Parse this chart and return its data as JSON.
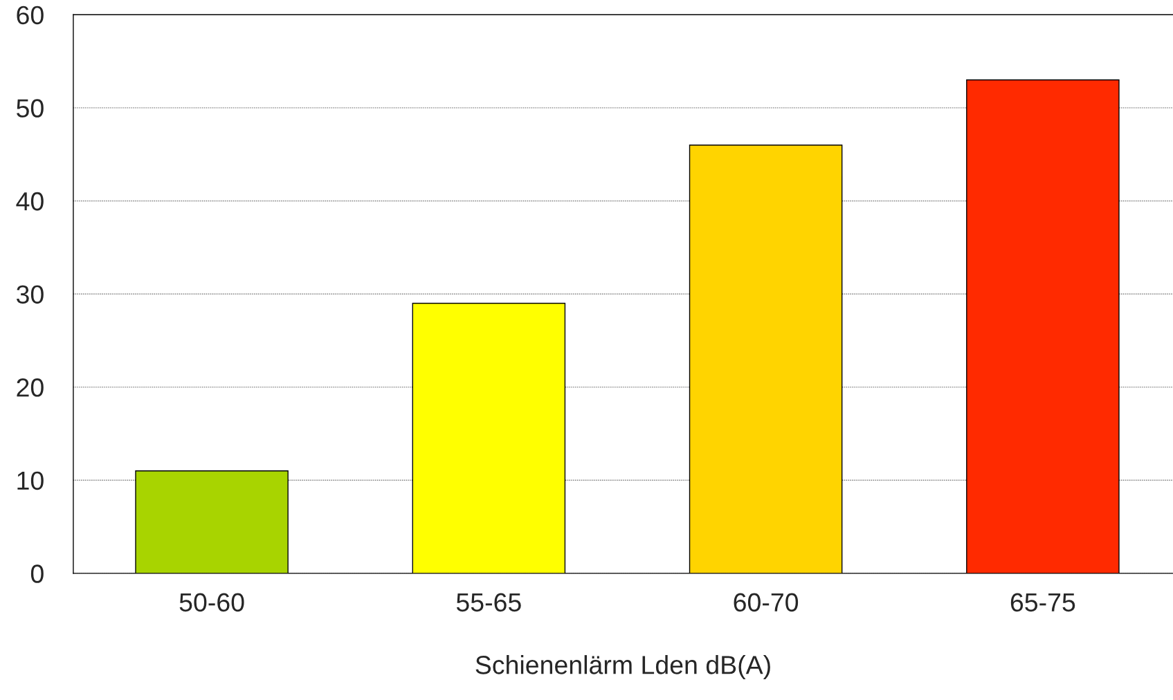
{
  "chart_data": {
    "type": "bar",
    "xlabel": "Schienenlärm Lden dB(A)",
    "categories": [
      "50-60",
      "55-65",
      "60-70",
      "65-75"
    ],
    "values": [
      11,
      29,
      46,
      53
    ],
    "colors": [
      "#a8d400",
      "#ffff00",
      "#ffd400",
      "#ff2a00"
    ],
    "ylim": [
      0,
      60
    ],
    "yticks": [
      0,
      10,
      20,
      30,
      40,
      50,
      60
    ],
    "grid": "y",
    "legend": false
  }
}
